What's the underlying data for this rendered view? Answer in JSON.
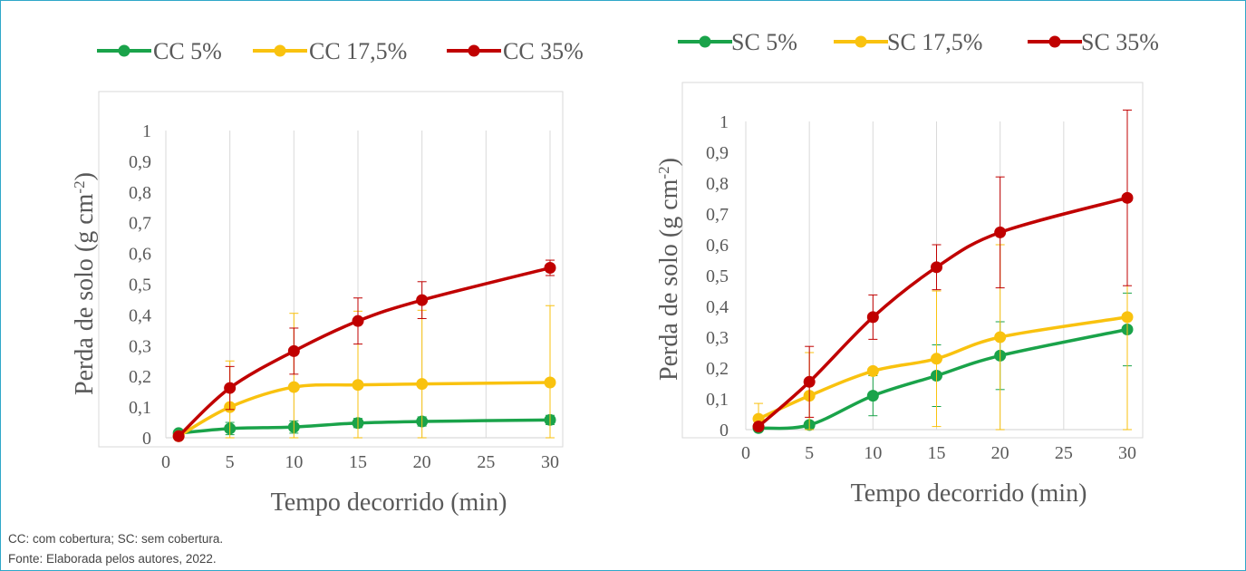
{
  "colors": {
    "green": "#1aa34a",
    "yellow": "#f9c20f",
    "red": "#c00000",
    "grid": "#d9d9d9",
    "axis_text": "#595959",
    "frame": "#2fa7c9"
  },
  "chart_data": [
    {
      "type": "line",
      "xlabel": "Tempo decorrido (min)",
      "ylabel_main": "Perda de solo (g cm",
      "ylabel_sup": "-2",
      "ylabel_close": ")",
      "ylim": [
        0,
        1
      ],
      "xlim": [
        0,
        30
      ],
      "x_ticks": [
        0,
        5,
        10,
        15,
        20,
        25,
        30
      ],
      "y_ticks": [
        0,
        0.1,
        0.2,
        0.3,
        0.4,
        0.5,
        0.6,
        0.7,
        0.8,
        0.9,
        1
      ],
      "y_tick_labels": [
        "0",
        "0,1",
        "0,2",
        "0,3",
        "0,4",
        "0,5",
        "0,6",
        "0,7",
        "0,8",
        "0,9",
        "1"
      ],
      "x_tick_labels": [
        "0",
        "5",
        "10",
        "15",
        "20",
        "25",
        "30"
      ],
      "grid": "vertical",
      "legend_position": "top",
      "series": [
        {
          "name": "CC 5%",
          "color": "green",
          "x": [
            1,
            5,
            10,
            15,
            20,
            30
          ],
          "y": [
            0.015,
            0.03,
            0.035,
            0.048,
            0.053,
            0.058
          ],
          "err": [
            0.005,
            0.02,
            0.02,
            0.015,
            0.015,
            0.015
          ]
        },
        {
          "name": "CC 17,5%",
          "color": "yellow",
          "x": [
            1,
            5,
            10,
            15,
            20,
            30
          ],
          "y": [
            0.005,
            0.1,
            0.165,
            0.172,
            0.175,
            0.18
          ],
          "err": [
            0.005,
            0.15,
            0.24,
            0.24,
            0.24,
            0.25
          ]
        },
        {
          "name": "CC 35%",
          "color": "red",
          "x": [
            1,
            5,
            10,
            15,
            20,
            30
          ],
          "y": [
            0.005,
            0.162,
            0.282,
            0.38,
            0.448,
            0.553
          ],
          "err": [
            0.005,
            0.07,
            0.075,
            0.075,
            0.06,
            0.025
          ]
        }
      ]
    },
    {
      "type": "line",
      "xlabel": "Tempo decorrido (min)",
      "ylabel_main": "Perda de solo (g cm",
      "ylabel_sup": "-2",
      "ylabel_close": ")",
      "ylim": [
        0,
        1
      ],
      "xlim": [
        0,
        30
      ],
      "x_ticks": [
        0,
        5,
        10,
        15,
        20,
        25,
        30
      ],
      "y_ticks": [
        0,
        0.1,
        0.2,
        0.3,
        0.4,
        0.5,
        0.6,
        0.7,
        0.8,
        0.9,
        1
      ],
      "y_tick_labels": [
        "0",
        "0,1",
        "0,2",
        "0,3",
        "0,4",
        "0,5",
        "0,6",
        "0,7",
        "0,8",
        "0,9",
        "1"
      ],
      "x_tick_labels": [
        "0",
        "5",
        "10",
        "15",
        "20",
        "25",
        "30"
      ],
      "grid": "vertical",
      "legend_position": "top",
      "series": [
        {
          "name": "SC 5%",
          "color": "green",
          "x": [
            1,
            5,
            10,
            15,
            20,
            30
          ],
          "y": [
            0.005,
            0.015,
            0.11,
            0.175,
            0.24,
            0.325
          ],
          "err": [
            0.005,
            0.005,
            0.065,
            0.1,
            0.11,
            0.118
          ]
        },
        {
          "name": "SC 17,5%",
          "color": "yellow",
          "x": [
            1,
            5,
            10,
            15,
            20,
            30
          ],
          "y": [
            0.035,
            0.11,
            0.19,
            0.23,
            0.3,
            0.365
          ],
          "err": [
            0.05,
            0.14,
            0.01,
            0.22,
            0.3,
            0.38
          ]
        },
        {
          "name": "SC 35%",
          "color": "red",
          "x": [
            1,
            5,
            10,
            15,
            20,
            30
          ],
          "y": [
            0.01,
            0.155,
            0.365,
            0.527,
            0.64,
            0.752
          ],
          "err": [
            0.005,
            0.115,
            0.072,
            0.073,
            0.18,
            0.285
          ]
        }
      ]
    }
  ],
  "notes": {
    "abbrev": "CC: com cobertura; SC: sem cobertura.",
    "source": "Fonte: Elaborada pelos autores, 2022."
  }
}
